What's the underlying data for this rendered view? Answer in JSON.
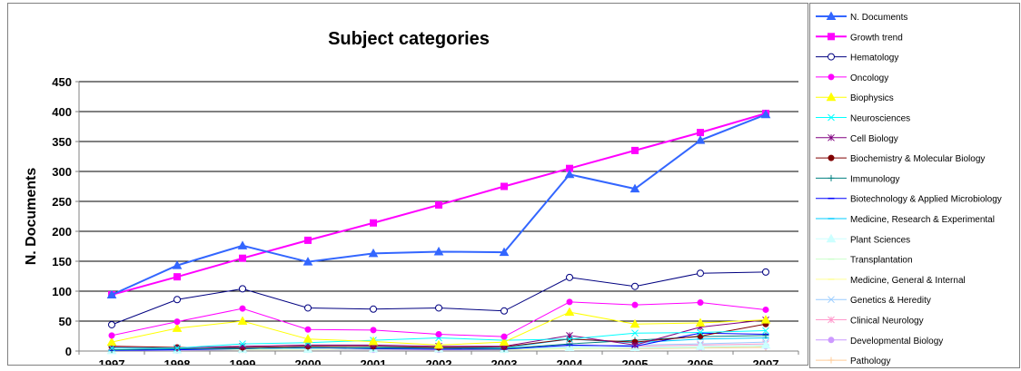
{
  "chart_data": {
    "type": "line",
    "title": "Subject categories",
    "xlabel": "",
    "ylabel": "N. Documents",
    "ylim": [
      0,
      450
    ],
    "yticks": [
      "0",
      "50",
      "100",
      "150",
      "200",
      "250",
      "300",
      "350",
      "400",
      "450"
    ],
    "categories": [
      "1997",
      "1998",
      "1999",
      "2000",
      "2001",
      "2002",
      "2003",
      "2004",
      "2005",
      "2006",
      "2007"
    ],
    "grid": "horizontal",
    "legend_position": "right",
    "series": [
      {
        "name": "N. Documents",
        "color": "#3366ff",
        "marker": "triangle",
        "width": 2,
        "values": [
          94,
          143,
          176,
          149,
          163,
          166,
          165,
          295,
          271,
          352,
          395
        ]
      },
      {
        "name": "Growth trend",
        "color": "#ff00ff",
        "marker": "square",
        "width": 2,
        "values": [
          94,
          124,
          155,
          185,
          214,
          244,
          275,
          305,
          335,
          365,
          397
        ]
      },
      {
        "name": "Hematology",
        "color": "#000080",
        "marker": "circle-open",
        "width": 1,
        "values": [
          44,
          86,
          104,
          72,
          70,
          72,
          67,
          123,
          108,
          130,
          132
        ]
      },
      {
        "name": "Oncology",
        "color": "#ff00ff",
        "marker": "circle",
        "width": 1,
        "values": [
          26,
          49,
          71,
          36,
          35,
          28,
          24,
          82,
          77,
          81,
          69
        ]
      },
      {
        "name": "Biophysics",
        "color": "#ffff00",
        "marker": "triangle",
        "width": 1,
        "values": [
          15,
          38,
          50,
          20,
          16,
          10,
          15,
          65,
          45,
          47,
          52
        ]
      },
      {
        "name": "Neurosciences",
        "color": "#00ffff",
        "marker": "x",
        "width": 1,
        "values": [
          5,
          5,
          12,
          14,
          18,
          22,
          18,
          20,
          30,
          31,
          34
        ]
      },
      {
        "name": "Cell Biology",
        "color": "#800080",
        "marker": "star",
        "width": 1,
        "values": [
          6,
          5,
          8,
          10,
          10,
          8,
          8,
          26,
          10,
          40,
          52
        ]
      },
      {
        "name": "Biochemistry & Molecular Biology",
        "color": "#800000",
        "marker": "circle",
        "width": 1,
        "values": [
          8,
          6,
          6,
          8,
          8,
          6,
          7,
          20,
          15,
          25,
          45
        ]
      },
      {
        "name": "Immunology",
        "color": "#008080",
        "marker": "plus",
        "width": 1,
        "values": [
          2,
          4,
          4,
          6,
          5,
          5,
          4,
          12,
          18,
          24,
          26
        ]
      },
      {
        "name": "Biotechnology & Applied Microbiology",
        "color": "#0000ff",
        "marker": "dash",
        "width": 1,
        "values": [
          1,
          2,
          4,
          6,
          4,
          3,
          3,
          10,
          8,
          30,
          28
        ]
      },
      {
        "name": "Medicine, Research & Experimental",
        "color": "#00ccff",
        "marker": "dash",
        "width": 1,
        "values": [
          2,
          3,
          5,
          5,
          6,
          6,
          5,
          20,
          14,
          20,
          22
        ]
      },
      {
        "name": "Plant Sciences",
        "color": "#ccffff",
        "marker": "triangle",
        "width": 1,
        "values": [
          1,
          2,
          3,
          3,
          4,
          4,
          3,
          6,
          6,
          8,
          10
        ]
      },
      {
        "name": "Transplantation",
        "color": "#ccffcc",
        "marker": "dash",
        "width": 1,
        "values": [
          2,
          3,
          3,
          3,
          3,
          4,
          3,
          5,
          5,
          6,
          8
        ]
      },
      {
        "name": "Medicine, General & Internal",
        "color": "#ffff99",
        "marker": "dash",
        "width": 1,
        "values": [
          1,
          2,
          2,
          2,
          3,
          3,
          2,
          4,
          5,
          6,
          8
        ]
      },
      {
        "name": "Genetics & Heredity",
        "color": "#99ccff",
        "marker": "x",
        "width": 1,
        "values": [
          1,
          2,
          2,
          3,
          3,
          3,
          3,
          8,
          10,
          12,
          15
        ]
      },
      {
        "name": "Clinical Neurology",
        "color": "#ff99cc",
        "marker": "star",
        "width": 1,
        "values": [
          2,
          3,
          3,
          4,
          4,
          4,
          3,
          10,
          8,
          10,
          12
        ]
      },
      {
        "name": "Developmental Biology",
        "color": "#cc99ff",
        "marker": "circle",
        "width": 1,
        "values": [
          1,
          1,
          2,
          2,
          2,
          2,
          2,
          6,
          5,
          6,
          8
        ]
      },
      {
        "name": "Pathology",
        "color": "#ffcc99",
        "marker": "plus",
        "width": 1,
        "values": [
          1,
          2,
          2,
          3,
          2,
          3,
          2,
          5,
          4,
          5,
          6
        ]
      }
    ]
  }
}
